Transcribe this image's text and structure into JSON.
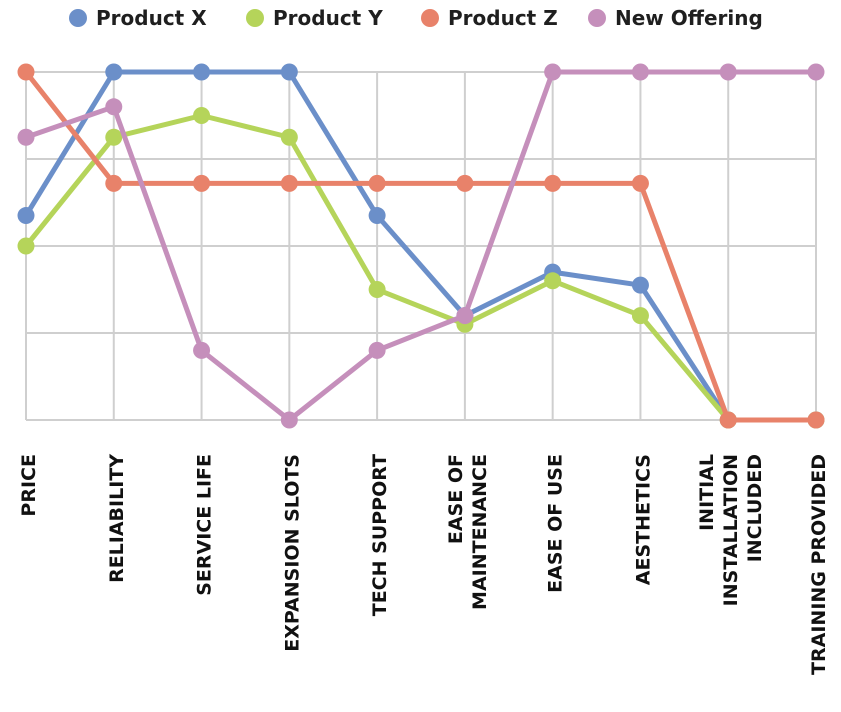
{
  "chart_data": {
    "type": "line",
    "title": "",
    "xlabel": "",
    "ylabel": "",
    "ylim": [
      0,
      4
    ],
    "grid": true,
    "legend_position": "top",
    "categories": [
      [
        "PRICE"
      ],
      [
        "RELIABILITY"
      ],
      [
        "SERVICE LIFE"
      ],
      [
        "EXPANSION SLOTS"
      ],
      [
        "TECH SUPPORT"
      ],
      [
        "EASE OF",
        "MAINTENANCE"
      ],
      [
        "EASE OF USE"
      ],
      [
        "AESTHETICS"
      ],
      [
        "INITIAL",
        "INSTALLATION",
        "INCLUDED"
      ],
      [
        "TRAINING PROVIDED"
      ]
    ],
    "series": [
      {
        "name": "Product X",
        "color": "#6b8fc9",
        "values": [
          2.35,
          4.0,
          4.0,
          4.0,
          2.35,
          1.2,
          1.7,
          1.55,
          0.0,
          0.0
        ]
      },
      {
        "name": "Product Y",
        "color": "#b5d45a",
        "values": [
          2.0,
          3.25,
          3.5,
          3.25,
          1.5,
          1.1,
          1.6,
          1.2,
          0.0,
          0.0
        ]
      },
      {
        "name": "Product Z",
        "color": "#e8826a",
        "values": [
          4.0,
          2.72,
          2.72,
          2.72,
          2.72,
          2.72,
          2.72,
          2.72,
          0.0,
          0.0
        ]
      },
      {
        "name": "New Offering",
        "color": "#c58fbb",
        "values": [
          3.25,
          3.6,
          0.8,
          0.0,
          0.8,
          1.2,
          4.0,
          4.0,
          4.0,
          4.0
        ]
      }
    ]
  }
}
